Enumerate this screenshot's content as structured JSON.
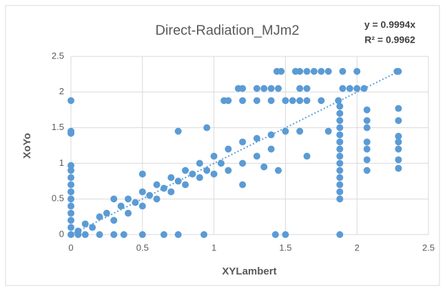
{
  "chart_data": {
    "type": "scatter",
    "title": "Direct-Radiation_MJm2",
    "x_label": "XYLambert",
    "y_label": "XoYo",
    "equation_label": "y = 0.9994x",
    "r2_label": "R² = 0.9962",
    "trendline_slope": 0.9994,
    "color": "#5b9bd5",
    "grid": true,
    "xlim": [
      0,
      2.5
    ],
    "xticks": [
      0,
      0.5,
      1,
      1.5,
      2,
      2.5
    ],
    "ylim": [
      0,
      2.5
    ],
    "yticks": [
      0,
      0.5,
      1,
      1.5,
      2,
      2.5
    ],
    "x": [
      0,
      0,
      0,
      0,
      0,
      0,
      0,
      0,
      0,
      0,
      0,
      0,
      0,
      0,
      0.05,
      0.1,
      0.2,
      0.3,
      0.37,
      0.5,
      0.65,
      0.75,
      0.93,
      1.43,
      1.5,
      1.88,
      1.44,
      1.47,
      1.57,
      1.6,
      1.65,
      1.7,
      1.75,
      1.8,
      1.9,
      2.0,
      2.28,
      2.29,
      1.17,
      1.2,
      1.3,
      1.35,
      1.4,
      1.45,
      1.6,
      1.65,
      1.9,
      1.95,
      2.0,
      2.05,
      1.07,
      1.1,
      1.2,
      1.3,
      1.4,
      1.5,
      1.55,
      1.6,
      1.65,
      1.75,
      1.87,
      1.88,
      1.88,
      1.88,
      1.88,
      1.88,
      1.88,
      1.88,
      1.88,
      1.88,
      1.88,
      1.88,
      1.88,
      1.88,
      1.88,
      2.07,
      2.07,
      2.07,
      2.07,
      2.07,
      2.07,
      2.07,
      2.29,
      2.29,
      2.29,
      2.29,
      2.29,
      2.29,
      2.29,
      0.05,
      0.1,
      0.15,
      0.2,
      0.25,
      0.3,
      0.35,
      0.4,
      0.4,
      0.45,
      0.5,
      0.5,
      0.55,
      0.6,
      0.6,
      0.65,
      0.7,
      0.7,
      0.75,
      0.8,
      0.8,
      0.85,
      0.9,
      0.9,
      0.95,
      1.0,
      1.0,
      1.05,
      1.1,
      1.1,
      1.2,
      1.2,
      1.3,
      1.3,
      1.4,
      1.4,
      1.5,
      1.6,
      0.75,
      0.95,
      0.5,
      0.3,
      1.2,
      1.45,
      1.65,
      1.8,
      1.35
    ],
    "values": [
      0,
      0.1,
      0.2,
      0.3,
      0.4,
      0.5,
      0.6,
      0.7,
      0.8,
      0.9,
      0.97,
      1.42,
      1.45,
      1.88,
      0,
      0,
      0,
      0,
      0,
      0,
      0,
      0,
      0,
      0,
      0,
      0,
      2.29,
      2.29,
      2.29,
      2.29,
      2.29,
      2.29,
      2.29,
      2.29,
      2.29,
      2.29,
      2.29,
      2.29,
      2.05,
      2.05,
      2.05,
      2.05,
      2.05,
      2.05,
      2.05,
      2.05,
      2.05,
      2.05,
      2.05,
      2.05,
      1.88,
      1.88,
      1.88,
      1.88,
      1.88,
      1.88,
      1.88,
      1.88,
      1.88,
      1.88,
      1.88,
      0.5,
      0.6,
      0.7,
      0.8,
      0.9,
      1.0,
      1.1,
      1.2,
      1.3,
      1.4,
      1.5,
      1.6,
      1.7,
      1.8,
      0.9,
      1.05,
      1.2,
      1.3,
      1.5,
      1.6,
      1.75,
      0.93,
      1.05,
      1.2,
      1.3,
      1.38,
      1.6,
      1.77,
      0.05,
      0.15,
      0.1,
      0.25,
      0.3,
      0.2,
      0.4,
      0.3,
      0.5,
      0.45,
      0.4,
      0.6,
      0.55,
      0.5,
      0.7,
      0.65,
      0.6,
      0.8,
      0.75,
      0.7,
      0.9,
      0.85,
      0.8,
      1.0,
      0.9,
      0.85,
      1.1,
      1.0,
      0.9,
      1.2,
      1.0,
      1.3,
      1.1,
      1.35,
      1.2,
      1.4,
      1.45,
      1.45,
      1.45,
      1.5,
      0.85,
      0.5,
      0.7,
      0.9,
      1.1,
      1.45,
      0.95
    ]
  }
}
